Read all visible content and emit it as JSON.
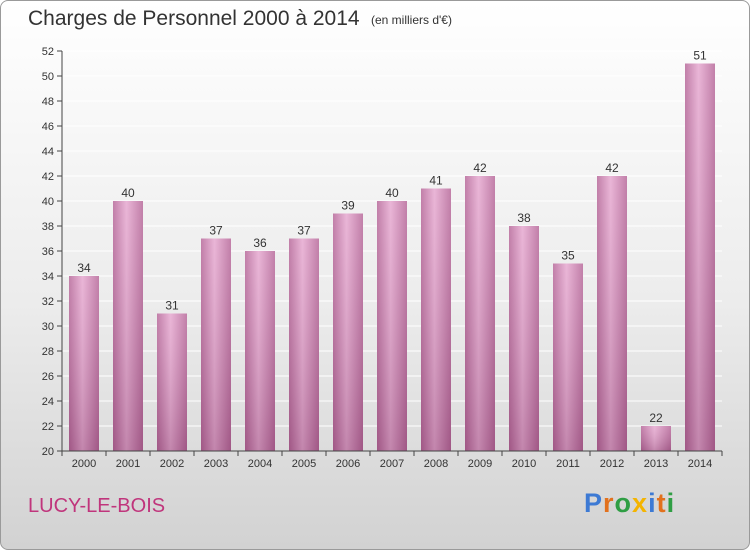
{
  "header": {
    "title": "Charges de Personnel 2000 à 2014",
    "subtitle": "(en milliers d'€)"
  },
  "footer": {
    "place": "LUCY-LE-BOIS",
    "logo": {
      "text": "Proxiti",
      "colors": [
        "#3d7ad4",
        "#e2711d",
        "#2f9e44",
        "#f4b400",
        "#3d7ad4",
        "#e2711d",
        "#2f9e44"
      ]
    }
  },
  "colors": {
    "bar_light": "#e6a9d0",
    "bar_dark": "#b7699a",
    "axis": "#444444",
    "grid": "#ffffff",
    "title": "#333333",
    "place": "#c0357c"
  },
  "chart_data": {
    "type": "bar",
    "title": "Charges de Personnel 2000 à 2014",
    "subtitle": "(en milliers d'€)",
    "categories": [
      "2000",
      "2001",
      "2002",
      "2003",
      "2004",
      "2005",
      "2006",
      "2007",
      "2008",
      "2009",
      "2010",
      "2011",
      "2012",
      "2013",
      "2014"
    ],
    "values": [
      34,
      40,
      31,
      37,
      36,
      37,
      39,
      40,
      41,
      42,
      38,
      35,
      42,
      22,
      51
    ],
    "ylim": [
      20,
      52
    ],
    "yticks": [
      20,
      22,
      24,
      26,
      28,
      30,
      32,
      34,
      36,
      38,
      40,
      42,
      44,
      46,
      48,
      50,
      52
    ],
    "grid": true,
    "legend": "none"
  }
}
